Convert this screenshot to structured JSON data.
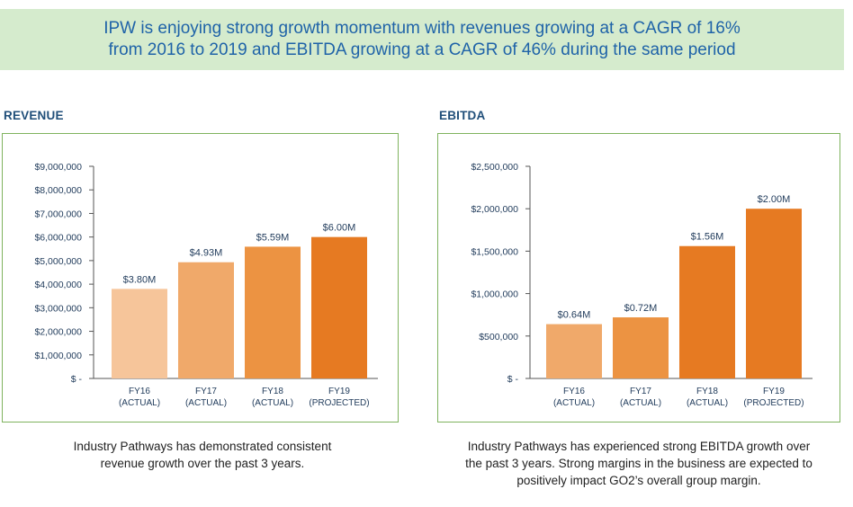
{
  "banner": {
    "line1": "IPW is enjoying strong growth momentum with revenues growing at a CAGR of 16%",
    "line2": "from 2016 to 2019 and EBITDA growing at a CAGR of 46% during the same period"
  },
  "chart_data": [
    {
      "type": "bar",
      "title": "REVENUE",
      "categories": [
        {
          "line1": "FY16",
          "line2": "(ACTUAL)"
        },
        {
          "line1": "FY17",
          "line2": "(ACTUAL)"
        },
        {
          "line1": "FY18",
          "line2": "(ACTUAL)"
        },
        {
          "line1": "FY19",
          "line2": "(PROJECTED)"
        }
      ],
      "values": [
        3800000,
        4930000,
        5590000,
        6000000
      ],
      "data_labels": [
        "$3.80M",
        "$4.93M",
        "$5.59M",
        "$6.00M"
      ],
      "colors": [
        "#f6c59a",
        "#f0a96a",
        "#ec9342",
        "#e67a22"
      ],
      "ylim": [
        0,
        9000000
      ],
      "y_ticks": [
        0,
        1000000,
        2000000,
        3000000,
        4000000,
        5000000,
        6000000,
        7000000,
        8000000,
        9000000
      ],
      "y_tick_labels": [
        "$ -",
        "$1,000,000",
        "$2,000,000",
        "$3,000,000",
        "$4,000,000",
        "$5,000,000",
        "$6,000,000",
        "$7,000,000",
        "$8,000,000",
        "$9,000,000"
      ],
      "grid": false,
      "caption": [
        "Industry Pathways has demonstrated consistent",
        "revenue growth over the past 3 years."
      ]
    },
    {
      "type": "bar",
      "title": "EBITDA",
      "categories": [
        {
          "line1": "FY16",
          "line2": "(ACTUAL)"
        },
        {
          "line1": "FY17",
          "line2": "(ACTUAL)"
        },
        {
          "line1": "FY18",
          "line2": "(ACTUAL)"
        },
        {
          "line1": "FY19",
          "line2": "(PROJECTED)"
        }
      ],
      "values": [
        640000,
        720000,
        1560000,
        2000000
      ],
      "data_labels": [
        "$0.64M",
        "$0.72M",
        "$1.56M",
        "$2.00M"
      ],
      "colors": [
        "#f0a96a",
        "#ec9342",
        "#e67a22",
        "#e67a22"
      ],
      "ylim": [
        0,
        2500000
      ],
      "y_ticks": [
        0,
        500000,
        1000000,
        1500000,
        2000000,
        2500000
      ],
      "y_tick_labels": [
        "$ -",
        "$500,000",
        "$1,000,000",
        "$1,500,000",
        "$2,000,000",
        "$2,500,000"
      ],
      "grid": false,
      "caption": [
        "Industry Pathways has experienced strong EBITDA growth over",
        "the past 3 years. Strong margins in the business are expected to",
        "positively impact GO2’s overall group margin."
      ]
    }
  ]
}
